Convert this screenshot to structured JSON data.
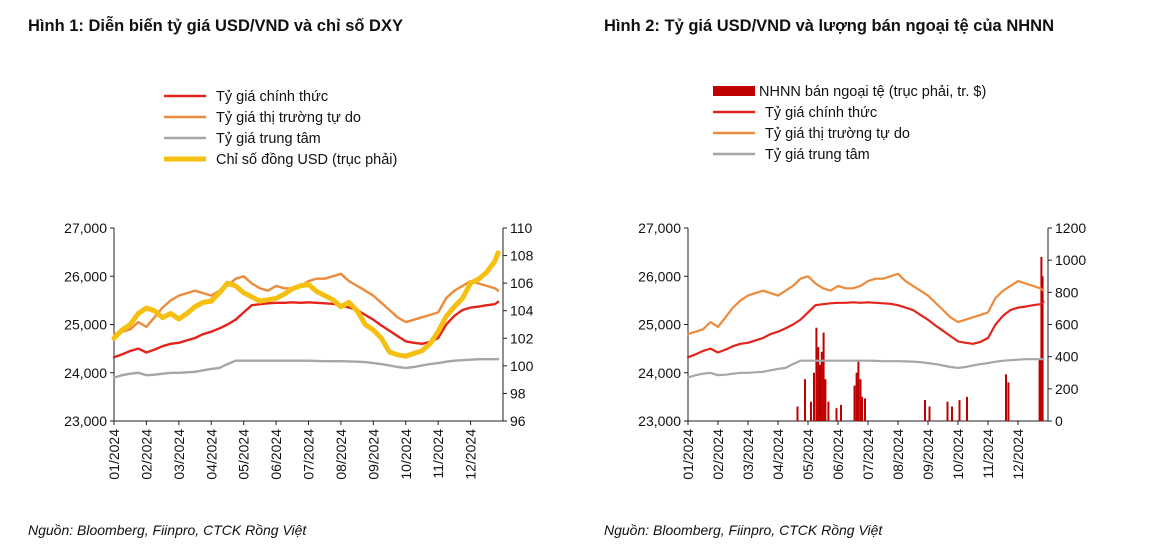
{
  "figures": [
    {
      "title": "Hình 1: Diễn biến tỷ giá USD/VND và chỉ số DXY",
      "source": "Nguồn: Bloomberg, Fiinpro, CTCK Rồng Việt"
    },
    {
      "title": "Hình 2: Tỷ giá USD/VND và lượng bán ngoại tệ của NHNN",
      "source": "Nguồn: Bloomberg,  Fiinpro, CTCK Rồng Việt"
    }
  ],
  "chart_data": [
    {
      "type": "line",
      "title": "Hình 1: Diễn biến tỷ giá USD/VND và chỉ số DXY",
      "x_labels": [
        "01/2024",
        "02/2024",
        "03/2024",
        "04/2024",
        "05/2024",
        "06/2024",
        "07/2024",
        "08/2024",
        "09/2024",
        "10/2024",
        "11/2024",
        "12/2024"
      ],
      "y_left": {
        "min": 23000,
        "max": 27000,
        "ticks": [
          "23,000",
          "24,000",
          "25,000",
          "26,000",
          "27,000"
        ],
        "tick_values": [
          23000,
          24000,
          25000,
          26000,
          27000
        ]
      },
      "y_right": {
        "min": 96,
        "max": 110,
        "ticks": [
          "96",
          "98",
          "100",
          "102",
          "104",
          "106",
          "108",
          "110"
        ],
        "tick_values": [
          96,
          98,
          100,
          102,
          104,
          106,
          108,
          110
        ]
      },
      "legend_position": "top-center",
      "series": [
        {
          "name": "Tỷ giá chính thức",
          "axis": "left",
          "color": "#e3241b",
          "x": [
            0,
            0.25,
            0.5,
            0.75,
            1,
            1.25,
            1.5,
            1.75,
            2,
            2.25,
            2.5,
            2.75,
            3,
            3.25,
            3.5,
            3.75,
            4,
            4.25,
            4.5,
            4.75,
            5,
            5.25,
            5.5,
            5.75,
            6,
            6.25,
            6.5,
            6.75,
            7,
            7.25,
            7.5,
            7.75,
            8,
            8.25,
            8.5,
            8.75,
            9,
            9.25,
            9.5,
            9.75,
            10,
            10.25,
            10.5,
            10.75,
            11,
            11.25,
            11.5,
            11.75,
            11.85
          ],
          "values": [
            24320,
            24380,
            24450,
            24500,
            24420,
            24480,
            24550,
            24600,
            24620,
            24670,
            24720,
            24800,
            24850,
            24920,
            25000,
            25100,
            25250,
            25400,
            25420,
            25440,
            25450,
            25450,
            25460,
            25450,
            25460,
            25450,
            25440,
            25430,
            25400,
            25350,
            25300,
            25200,
            25100,
            24980,
            24870,
            24760,
            24650,
            24620,
            24600,
            24640,
            24720,
            25000,
            25180,
            25300,
            25350,
            25370,
            25400,
            25420,
            25470
          ]
        },
        {
          "name": "Tỷ giá thị trường tự do",
          "axis": "left",
          "color": "#ed8b3c",
          "x": [
            0,
            0.25,
            0.5,
            0.75,
            1,
            1.25,
            1.5,
            1.75,
            2,
            2.25,
            2.5,
            2.75,
            3,
            3.25,
            3.5,
            3.75,
            4,
            4.25,
            4.5,
            4.75,
            5,
            5.25,
            5.5,
            5.75,
            6,
            6.25,
            6.5,
            6.75,
            7,
            7.25,
            7.5,
            7.75,
            8,
            8.25,
            8.5,
            8.75,
            9,
            9.25,
            9.5,
            9.75,
            10,
            10.25,
            10.5,
            10.75,
            11,
            11.25,
            11.5,
            11.75,
            11.85
          ],
          "values": [
            24800,
            24850,
            24900,
            25050,
            24950,
            25150,
            25350,
            25500,
            25600,
            25650,
            25700,
            25650,
            25600,
            25700,
            25800,
            25950,
            26000,
            25850,
            25750,
            25700,
            25800,
            25750,
            25750,
            25800,
            25900,
            25950,
            25950,
            26000,
            26050,
            25900,
            25800,
            25700,
            25600,
            25450,
            25300,
            25150,
            25050,
            25100,
            25150,
            25200,
            25250,
            25550,
            25700,
            25800,
            25900,
            25850,
            25800,
            25750,
            25700
          ]
        },
        {
          "name": "Tỷ giá trung tâm",
          "axis": "left",
          "color": "#a6a6a6",
          "x": [
            0,
            0.25,
            0.5,
            0.75,
            1,
            1.25,
            1.5,
            1.75,
            2,
            2.25,
            2.5,
            2.75,
            3,
            3.25,
            3.5,
            3.75,
            4,
            4.25,
            4.5,
            4.75,
            5,
            5.25,
            5.5,
            5.75,
            6,
            6.25,
            6.5,
            6.75,
            7,
            7.25,
            7.5,
            7.75,
            8,
            8.25,
            8.5,
            8.75,
            9,
            9.25,
            9.5,
            9.75,
            10,
            10.25,
            10.5,
            10.75,
            11,
            11.25,
            11.5,
            11.75,
            11.85
          ],
          "values": [
            23900,
            23950,
            23980,
            24000,
            23950,
            23960,
            23980,
            24000,
            24000,
            24010,
            24020,
            24050,
            24080,
            24100,
            24180,
            24250,
            24250,
            24250,
            24250,
            24250,
            24250,
            24250,
            24250,
            24250,
            24250,
            24245,
            24240,
            24240,
            24240,
            24235,
            24230,
            24220,
            24200,
            24180,
            24150,
            24120,
            24100,
            24120,
            24150,
            24180,
            24200,
            24230,
            24250,
            24260,
            24270,
            24280,
            24280,
            24280,
            24280
          ]
        },
        {
          "name": "Chỉ số đồng USD (trục phải)",
          "axis": "right",
          "color": "#f6c012",
          "x": [
            0,
            0.25,
            0.5,
            0.75,
            1,
            1.25,
            1.5,
            1.75,
            2,
            2.25,
            2.5,
            2.75,
            3,
            3.25,
            3.5,
            3.75,
            4,
            4.25,
            4.5,
            4.75,
            5,
            5.25,
            5.5,
            5.75,
            6,
            6.25,
            6.5,
            6.75,
            7,
            7.25,
            7.5,
            7.75,
            8,
            8.25,
            8.5,
            8.75,
            9,
            9.25,
            9.5,
            9.75,
            10,
            10.25,
            10.5,
            10.75,
            11,
            11.25,
            11.5,
            11.75,
            11.85
          ],
          "values": [
            102.0,
            102.6,
            103.0,
            103.8,
            104.2,
            104.0,
            103.5,
            103.8,
            103.4,
            103.8,
            104.3,
            104.6,
            104.7,
            105.3,
            106.0,
            105.8,
            105.3,
            105.0,
            104.7,
            104.8,
            104.9,
            105.2,
            105.6,
            105.8,
            105.9,
            105.4,
            105.1,
            104.8,
            104.3,
            104.6,
            104.0,
            103.0,
            102.6,
            102.0,
            101.0,
            100.8,
            100.7,
            100.9,
            101.1,
            101.6,
            102.5,
            103.6,
            104.3,
            104.9,
            106.0,
            106.3,
            106.8,
            107.6,
            108.2
          ]
        }
      ]
    },
    {
      "type": "line",
      "title": "Hình 2: Tỷ giá USD/VND và lượng bán ngoại tệ của NHNN",
      "x_labels": [
        "01/2024",
        "02/2024",
        "03/2024",
        "04/2024",
        "05/2024",
        "06/2024",
        "07/2024",
        "08/2024",
        "09/2024",
        "10/2024",
        "11/2024",
        "12/2024"
      ],
      "y_left": {
        "min": 23000,
        "max": 27000,
        "ticks": [
          "23,000",
          "24,000",
          "25,000",
          "26,000",
          "27,000"
        ],
        "tick_values": [
          23000,
          24000,
          25000,
          26000,
          27000
        ]
      },
      "y_right": {
        "min": 0,
        "max": 1200,
        "ticks": [
          "0",
          "200",
          "400",
          "600",
          "800",
          "1000",
          "1200"
        ],
        "tick_values": [
          0,
          200,
          400,
          600,
          800,
          1000,
          1200
        ]
      },
      "legend_position": "top-center",
      "bars": {
        "name": "NHNN bán ngoại tệ (trục phải, tr. $)",
        "axis": "right",
        "color": "#c00000",
        "x": [
          3.65,
          3.9,
          4.1,
          4.2,
          4.28,
          4.34,
          4.4,
          4.46,
          4.52,
          4.58,
          4.68,
          4.95,
          5.1,
          5.55,
          5.62,
          5.68,
          5.75,
          5.8,
          5.9,
          7.9,
          8.05,
          8.65,
          8.8,
          9.05,
          9.3,
          10.6,
          10.68,
          11.72,
          11.78,
          11.82
        ],
        "values": [
          90,
          260,
          120,
          300,
          580,
          460,
          350,
          430,
          550,
          260,
          120,
          80,
          100,
          220,
          300,
          380,
          260,
          150,
          140,
          130,
          90,
          120,
          90,
          130,
          150,
          290,
          240,
          380,
          1020,
          900
        ]
      },
      "series": [
        {
          "name": "Tỷ giá chính thức",
          "axis": "left",
          "color": "#e3241b",
          "x": [
            0,
            0.25,
            0.5,
            0.75,
            1,
            1.25,
            1.5,
            1.75,
            2,
            2.25,
            2.5,
            2.75,
            3,
            3.25,
            3.5,
            3.75,
            4,
            4.25,
            4.5,
            4.75,
            5,
            5.25,
            5.5,
            5.75,
            6,
            6.25,
            6.5,
            6.75,
            7,
            7.25,
            7.5,
            7.75,
            8,
            8.25,
            8.5,
            8.75,
            9,
            9.25,
            9.5,
            9.75,
            10,
            10.25,
            10.5,
            10.75,
            11,
            11.25,
            11.5,
            11.75,
            11.85
          ],
          "values": [
            24320,
            24380,
            24450,
            24500,
            24420,
            24480,
            24550,
            24600,
            24620,
            24670,
            24720,
            24800,
            24850,
            24920,
            25000,
            25100,
            25250,
            25400,
            25420,
            25440,
            25450,
            25450,
            25460,
            25450,
            25460,
            25450,
            25440,
            25430,
            25400,
            25350,
            25300,
            25200,
            25100,
            24980,
            24870,
            24760,
            24650,
            24620,
            24600,
            24640,
            24720,
            25000,
            25180,
            25300,
            25350,
            25370,
            25400,
            25420,
            25470
          ]
        },
        {
          "name": "Tỷ giá thị trường tự do",
          "axis": "left",
          "color": "#ed8b3c",
          "x": [
            0,
            0.25,
            0.5,
            0.75,
            1,
            1.25,
            1.5,
            1.75,
            2,
            2.25,
            2.5,
            2.75,
            3,
            3.25,
            3.5,
            3.75,
            4,
            4.25,
            4.5,
            4.75,
            5,
            5.25,
            5.5,
            5.75,
            6,
            6.25,
            6.5,
            6.75,
            7,
            7.25,
            7.5,
            7.75,
            8,
            8.25,
            8.5,
            8.75,
            9,
            9.25,
            9.5,
            9.75,
            10,
            10.25,
            10.5,
            10.75,
            11,
            11.25,
            11.5,
            11.75,
            11.85
          ],
          "values": [
            24800,
            24850,
            24900,
            25050,
            24950,
            25150,
            25350,
            25500,
            25600,
            25650,
            25700,
            25650,
            25600,
            25700,
            25800,
            25950,
            26000,
            25850,
            25750,
            25700,
            25800,
            25750,
            25750,
            25800,
            25900,
            25950,
            25950,
            26000,
            26050,
            25900,
            25800,
            25700,
            25600,
            25450,
            25300,
            25150,
            25050,
            25100,
            25150,
            25200,
            25250,
            25550,
            25700,
            25800,
            25900,
            25850,
            25800,
            25750,
            25700
          ]
        },
        {
          "name": "Tỷ giá trung tâm",
          "axis": "left",
          "color": "#a6a6a6",
          "x": [
            0,
            0.25,
            0.5,
            0.75,
            1,
            1.25,
            1.5,
            1.75,
            2,
            2.25,
            2.5,
            2.75,
            3,
            3.25,
            3.5,
            3.75,
            4,
            4.25,
            4.5,
            4.75,
            5,
            5.25,
            5.5,
            5.75,
            6,
            6.25,
            6.5,
            6.75,
            7,
            7.25,
            7.5,
            7.75,
            8,
            8.25,
            8.5,
            8.75,
            9,
            9.25,
            9.5,
            9.75,
            10,
            10.25,
            10.5,
            10.75,
            11,
            11.25,
            11.5,
            11.75,
            11.85
          ],
          "values": [
            23900,
            23950,
            23980,
            24000,
            23950,
            23960,
            23980,
            24000,
            24000,
            24010,
            24020,
            24050,
            24080,
            24100,
            24180,
            24250,
            24250,
            24250,
            24250,
            24250,
            24250,
            24250,
            24250,
            24250,
            24250,
            24245,
            24240,
            24240,
            24240,
            24235,
            24230,
            24220,
            24200,
            24180,
            24150,
            24120,
            24100,
            24120,
            24150,
            24180,
            24200,
            24230,
            24250,
            24260,
            24270,
            24280,
            24280,
            24280,
            24280
          ]
        }
      ]
    }
  ]
}
